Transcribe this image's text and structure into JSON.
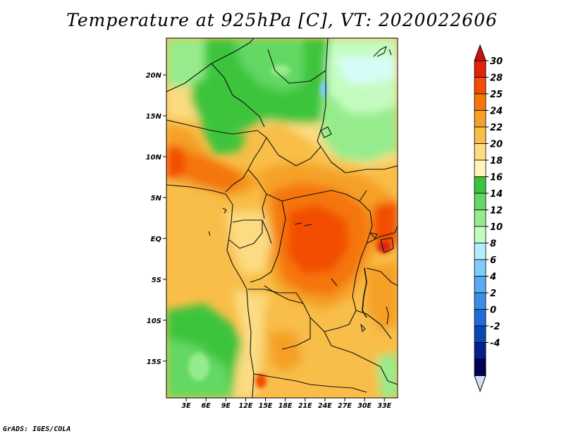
{
  "title": "Temperature at 925hPa [C], VT: 2020022606",
  "credit": "GrADS: IGES/COLA",
  "map": {
    "lat_range": [
      -19.5,
      24.5
    ],
    "lon_range": [
      0,
      35
    ],
    "y_axis_labels": [
      {
        "text": "20N",
        "lat": 20
      },
      {
        "text": "15N",
        "lat": 15
      },
      {
        "text": "10N",
        "lat": 10
      },
      {
        "text": "5N",
        "lat": 5
      },
      {
        "text": "EQ",
        "lat": 0
      },
      {
        "text": "5S",
        "lat": -5
      },
      {
        "text": "10S",
        "lat": -10
      },
      {
        "text": "15S",
        "lat": -15
      }
    ],
    "x_axis_labels": [
      {
        "text": "3E",
        "lon": 3
      },
      {
        "text": "6E",
        "lon": 6
      },
      {
        "text": "9E",
        "lon": 9
      },
      {
        "text": "12E",
        "lon": 12
      },
      {
        "text": "15E",
        "lon": 15
      },
      {
        "text": "18E",
        "lon": 18
      },
      {
        "text": "21E",
        "lon": 21
      },
      {
        "text": "24E",
        "lon": 24
      },
      {
        "text": "27E",
        "lon": 27
      },
      {
        "text": "30E",
        "lon": 30
      },
      {
        "text": "33E",
        "lon": 33
      }
    ]
  },
  "colorbar": {
    "labels": [
      "30",
      "28",
      "25",
      "24",
      "22",
      "20",
      "18",
      "16",
      "14",
      "12",
      "10",
      "8",
      "6",
      "4",
      "2",
      "0",
      "-2",
      "-4"
    ],
    "colors": [
      "#e0230a",
      "#f24d00",
      "#f5760b",
      "#f5a028",
      "#f8be48",
      "#fcdb82",
      "#fff5bc",
      "#3cc43c",
      "#64d864",
      "#96ec8c",
      "#c4fcc0",
      "#b2eefc",
      "#80ccfc",
      "#5aaaf4",
      "#3c8ce8",
      "#1e6ed8",
      "#0a46b4",
      "#04208a",
      "#000056"
    ],
    "top_cap": "#d01010",
    "bottom_cap": "#dcdcf5"
  }
}
